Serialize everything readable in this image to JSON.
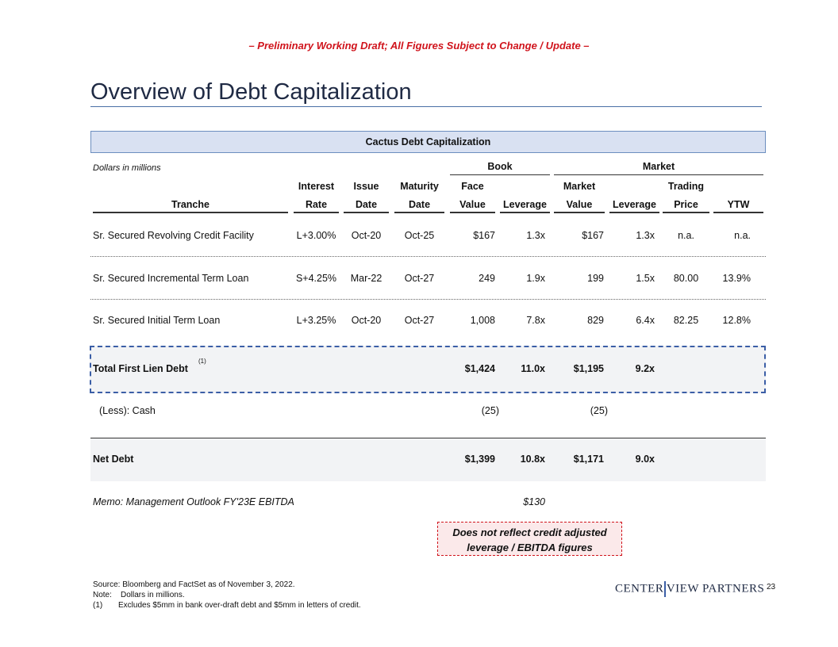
{
  "header": {
    "draft_notice": "– Preliminary Working Draft; All Figures Subject to Change / Update –",
    "title": "Overview of Debt Capitalization"
  },
  "table": {
    "banner": "Cactus Debt Capitalization",
    "units": "Dollars in millions",
    "groups": {
      "book": "Book",
      "market": "Market"
    },
    "headers": {
      "tranche": "Tranche",
      "rate": [
        "Interest",
        "Rate"
      ],
      "issue": [
        "Issue",
        "Date"
      ],
      "maturity": [
        "Maturity",
        "Date"
      ],
      "face": [
        "Face",
        "Value"
      ],
      "book_lev": "Leverage",
      "mkt_value": [
        "Market",
        "Value"
      ],
      "mkt_lev": "Leverage",
      "price": [
        "Trading",
        "Price"
      ],
      "ytw": "YTW"
    },
    "rows": [
      {
        "tranche": "Sr. Secured Revolving Credit Facility",
        "rate": "L+3.00%",
        "issue": "Oct-20",
        "maturity": "Oct-25",
        "face": "$167",
        "book_lev": "1.3x",
        "mkt_value": "$167",
        "mkt_lev": "1.3x",
        "price": "n.a.",
        "ytw": "n.a."
      },
      {
        "tranche": "Sr. Secured Incremental Term Loan",
        "rate": "S+4.25%",
        "issue": "Mar-22",
        "maturity": "Oct-27",
        "face": "249",
        "book_lev": "1.9x",
        "mkt_value": "199",
        "mkt_lev": "1.5x",
        "price": "80.00",
        "ytw": "13.9%"
      },
      {
        "tranche": "Sr. Secured Initial Term Loan",
        "rate": "L+3.25%",
        "issue": "Oct-20",
        "maturity": "Oct-27",
        "face": "1,008",
        "book_lev": "7.8x",
        "mkt_value": "829",
        "mkt_lev": "6.4x",
        "price": "82.25",
        "ytw": "12.8%"
      }
    ],
    "total": {
      "label": "Total First Lien Debt",
      "footnote": "(1)",
      "face": "$1,424",
      "book_lev": "11.0x",
      "mkt_value": "$1,195",
      "mkt_lev": "9.2x"
    },
    "cash": {
      "label": "(Less): Cash",
      "face": "(25)",
      "mkt_value": "(25)"
    },
    "net": {
      "label": "Net Debt",
      "face": "$1,399",
      "book_lev": "10.8x",
      "mkt_value": "$1,171",
      "mkt_lev": "9.0x"
    },
    "memo": {
      "label": "Memo: Management Outlook FY'23E EBITDA",
      "value": "$130"
    }
  },
  "callout": [
    "Does not reflect credit adjusted",
    "leverage / EBITDA figures"
  ],
  "footer": {
    "source": "Source:  Bloomberg and FactSet as of November 3, 2022.",
    "note": "Note:    Dollars in millions.",
    "fn1_num": "(1)",
    "fn1": "Excludes $5mm in bank over-draft debt and $5mm in letters of credit.",
    "logo": "CENTERVIEW PARTNERS",
    "logo_left": "CENTER",
    "logo_right": "VIEW PARTNERS",
    "page": "23"
  }
}
